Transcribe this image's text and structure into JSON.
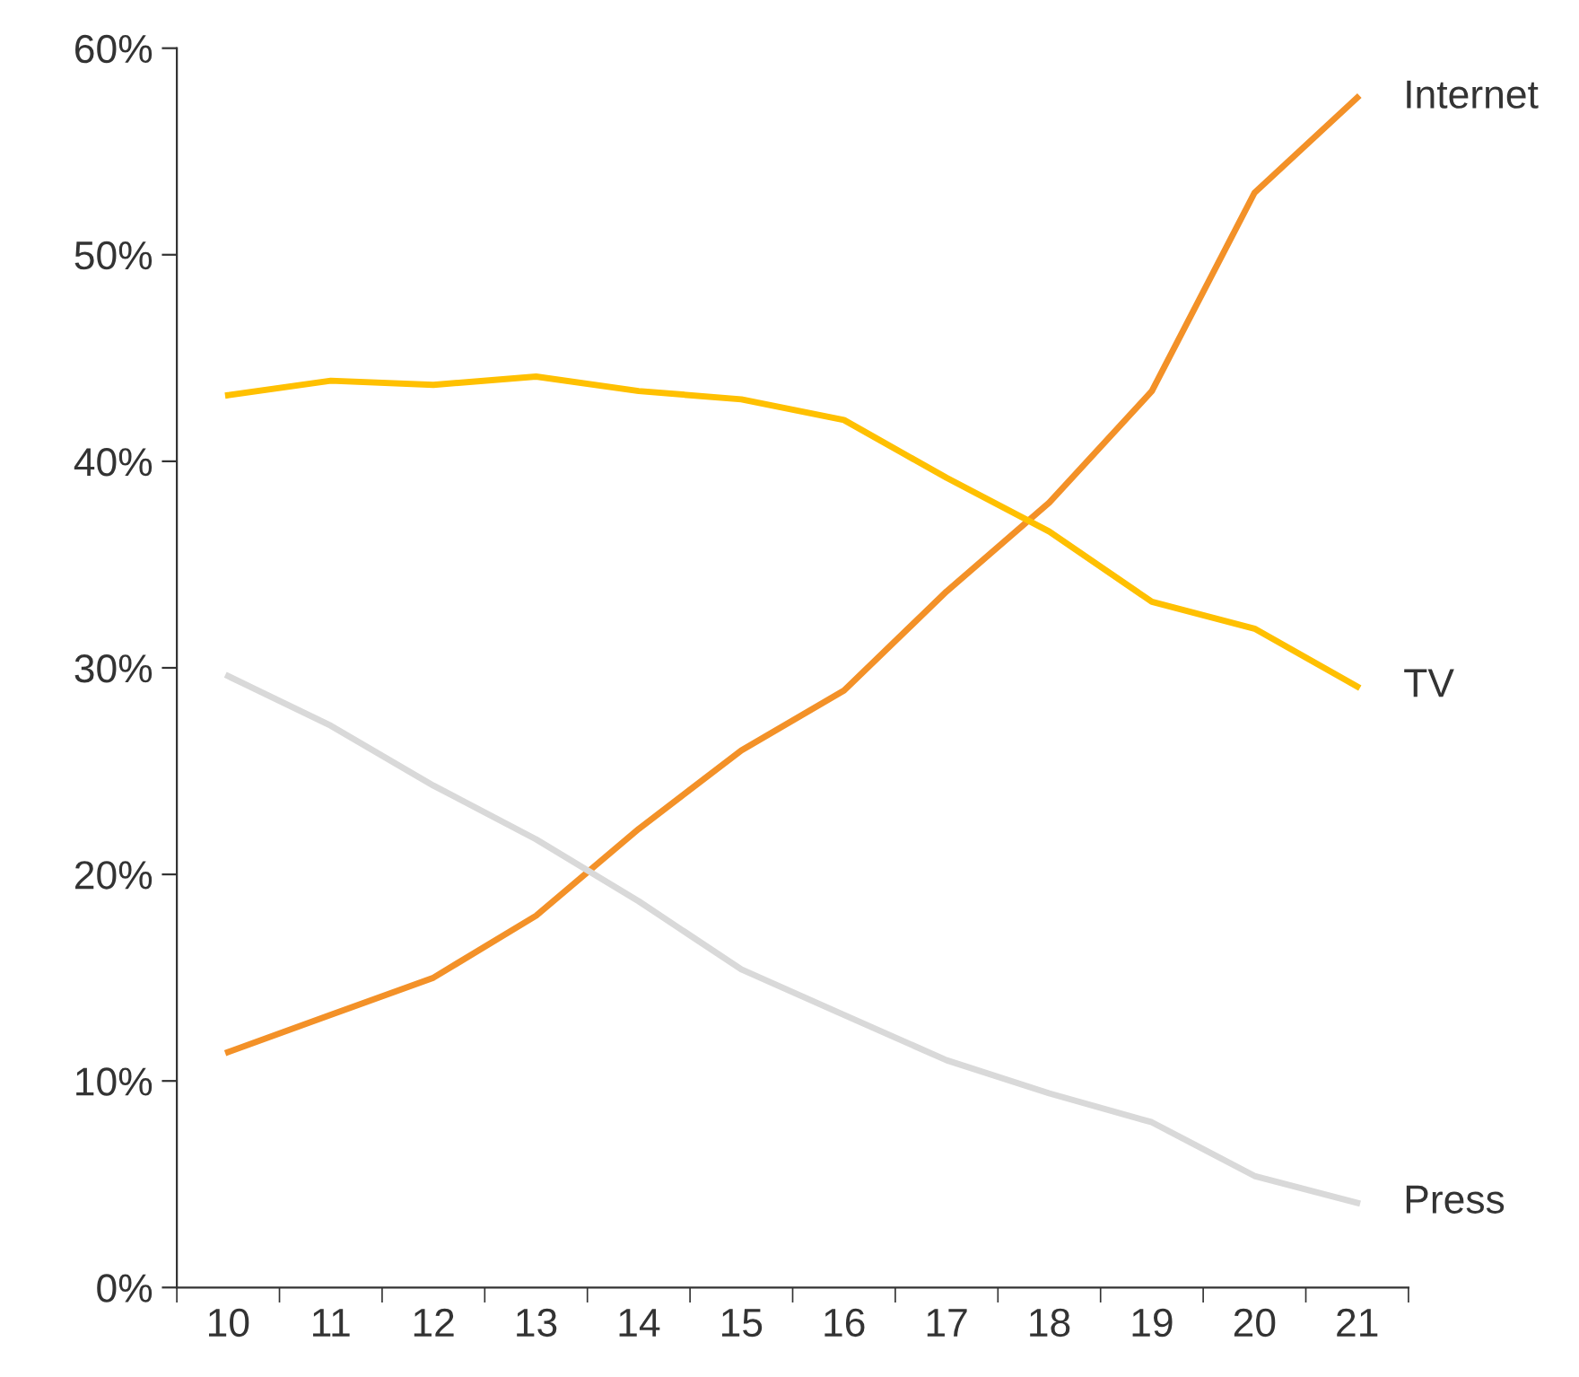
{
  "chart_data": {
    "type": "line",
    "categories": [
      "10",
      "11",
      "12",
      "13",
      "14",
      "15",
      "16",
      "17",
      "18",
      "19",
      "20",
      "21"
    ],
    "series": [
      {
        "name": "Internet",
        "color": "#f39128",
        "values": [
          11.4,
          13.2,
          15.0,
          18.0,
          22.2,
          26.0,
          28.9,
          33.7,
          38.0,
          43.4,
          53.0,
          57.6
        ]
      },
      {
        "name": "TV",
        "color": "#ffc000",
        "values": [
          43.2,
          43.9,
          43.7,
          44.1,
          43.4,
          43.0,
          42.0,
          39.2,
          36.6,
          33.2,
          31.9,
          29.1
        ]
      },
      {
        "name": "Press",
        "color": "#d9d9d9",
        "values": [
          29.6,
          27.2,
          24.3,
          21.7,
          18.7,
          15.4,
          13.2,
          11.0,
          9.4,
          8.0,
          5.4,
          4.1
        ]
      }
    ],
    "ylim": [
      0,
      60
    ],
    "yticks": [
      {
        "value": 0,
        "label": "0%"
      },
      {
        "value": 10,
        "label": "10%"
      },
      {
        "value": 20,
        "label": "20%"
      },
      {
        "value": 30,
        "label": "30%"
      },
      {
        "value": 40,
        "label": "40%"
      },
      {
        "value": 50,
        "label": "50%"
      },
      {
        "value": 60,
        "label": "60%"
      }
    ],
    "grid": false,
    "legend": false,
    "marker": "none",
    "line_style": "solid"
  }
}
